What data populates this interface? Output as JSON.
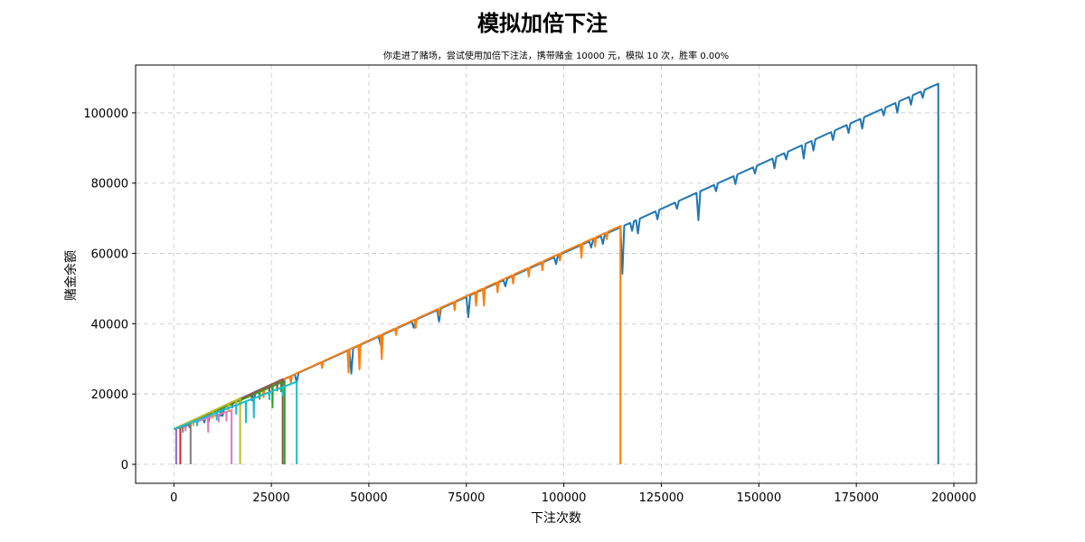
{
  "chart_data": {
    "type": "line",
    "title": "模拟加倍下注",
    "subtitle": "你走进了赌场，尝试使用加倍下注法，携带赌金 10000 元，模拟 10 次，胜率 0.00%",
    "xlabel": "下注次数",
    "ylabel": "赌金余额",
    "xlim": [
      -9800,
      205800
    ],
    "ylim": [
      -5400,
      113600
    ],
    "xticks": [
      0,
      25000,
      50000,
      75000,
      100000,
      125000,
      150000,
      175000,
      200000
    ],
    "yticks": [
      0,
      20000,
      40000,
      60000,
      80000,
      100000
    ],
    "grid": true,
    "legend": "none",
    "start_balance": 10000,
    "series": [
      {
        "color": "#1f77b4",
        "end_x": 196000,
        "peak": 108300,
        "dips": [
          [
            7800,
            2000
          ],
          [
            12500,
            2500
          ],
          [
            20500,
            2200
          ],
          [
            31500,
            2500
          ],
          [
            45500,
            7000
          ],
          [
            53000,
            2500
          ],
          [
            61500,
            2000
          ],
          [
            68000,
            3500
          ],
          [
            75500,
            6000
          ],
          [
            85000,
            2000
          ],
          [
            98000,
            2200
          ],
          [
            107000,
            2000
          ],
          [
            110000,
            2500
          ],
          [
            115000,
            13500
          ],
          [
            117500,
            2500
          ],
          [
            119000,
            4000
          ],
          [
            124000,
            2500
          ],
          [
            129000,
            2000
          ],
          [
            134500,
            8000
          ],
          [
            139000,
            2000
          ],
          [
            144000,
            2500
          ],
          [
            149000,
            2000
          ],
          [
            154000,
            3000
          ],
          [
            157000,
            2000
          ],
          [
            161500,
            4000
          ],
          [
            164000,
            3000
          ],
          [
            169000,
            2500
          ],
          [
            173000,
            2500
          ],
          [
            176500,
            3000
          ],
          [
            182000,
            2000
          ],
          [
            185500,
            3000
          ],
          [
            189000,
            2500
          ],
          [
            192000,
            2000
          ]
        ]
      },
      {
        "color": "#ff7f0e",
        "end_x": 114500,
        "peak": 67800,
        "dips": [
          [
            9000,
            2500
          ],
          [
            17000,
            2000
          ],
          [
            23000,
            2500
          ],
          [
            30000,
            2000
          ],
          [
            38000,
            1800
          ],
          [
            44800,
            6500
          ],
          [
            47600,
            7000
          ],
          [
            53300,
            7000
          ],
          [
            57000,
            2000
          ],
          [
            62000,
            2500
          ],
          [
            68000,
            2000
          ],
          [
            72000,
            2500
          ],
          [
            77500,
            4000
          ],
          [
            79500,
            5000
          ],
          [
            83000,
            3000
          ],
          [
            87000,
            2500
          ],
          [
            91000,
            2500
          ],
          [
            94500,
            2500
          ],
          [
            99000,
            2000
          ],
          [
            104500,
            4000
          ],
          [
            108000,
            2500
          ],
          [
            111000,
            2000
          ]
        ]
      },
      {
        "color": "#2ca02c",
        "end_x": 28400,
        "peak": 23700,
        "dips": [
          [
            6000,
            1500
          ],
          [
            12000,
            2000
          ],
          [
            17000,
            1500
          ],
          [
            22000,
            2000
          ],
          [
            25300,
            6000
          ],
          [
            27500,
            2500
          ]
        ]
      },
      {
        "color": "#d62728",
        "end_x": 1650,
        "peak": 10500,
        "dips": []
      },
      {
        "color": "#9467bd",
        "end_x": 600,
        "peak": 10200,
        "dips": []
      },
      {
        "color": "#8c564b",
        "end_x": 27900,
        "peak": 24200,
        "dips": [
          [
            4000,
            1500
          ],
          [
            9000,
            2000
          ],
          [
            15000,
            1500
          ],
          [
            20000,
            2000
          ],
          [
            24500,
            2500
          ],
          [
            26500,
            2500
          ]
        ]
      },
      {
        "color": "#e377c2",
        "end_x": 14800,
        "peak": 15400,
        "dips": [
          [
            3000,
            1500
          ],
          [
            8800,
            4000
          ],
          [
            11500,
            2000
          ],
          [
            13500,
            2500
          ]
        ]
      },
      {
        "color": "#7f7f7f",
        "end_x": 4300,
        "peak": 11300,
        "dips": [
          [
            2300,
            1500
          ]
        ]
      },
      {
        "color": "#bcbd22",
        "end_x": 17000,
        "peak": 18800,
        "dips": [
          [
            5000,
            1500
          ],
          [
            10000,
            2000
          ],
          [
            14000,
            2000
          ],
          [
            16000,
            1500
          ]
        ]
      },
      {
        "color": "#17becf",
        "end_x": 31500,
        "peak": 23500,
        "dips": [
          [
            6000,
            1500
          ],
          [
            11000,
            2000
          ],
          [
            16000,
            2500
          ],
          [
            18500,
            6000
          ],
          [
            20500,
            5500
          ],
          [
            24500,
            2000
          ],
          [
            28000,
            2500
          ]
        ]
      }
    ]
  }
}
